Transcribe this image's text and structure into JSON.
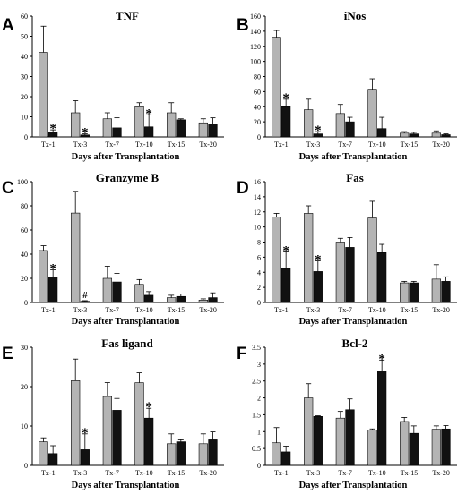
{
  "colors": {
    "series_a": "#b4b4b4",
    "series_b": "#111111",
    "axis": "#000000"
  },
  "chart_data": [
    {
      "panel": "A",
      "type": "bar",
      "title": "TNF",
      "xlabel": "Days after Transplantation",
      "ylabel": "",
      "categories": [
        "Tx-1",
        "Tx-3",
        "Tx-7",
        "Tx-10",
        "Tx-15",
        "Tx-20"
      ],
      "ylim": [
        0,
        60
      ],
      "yticks": [
        "0",
        "10",
        "20",
        "30",
        "40",
        "50",
        "60"
      ],
      "series": [
        {
          "values": [
            42,
            12,
            9,
            15,
            12,
            7
          ],
          "errors": [
            13,
            6,
            3,
            2,
            5,
            2
          ]
        },
        {
          "values": [
            2.5,
            1,
            4.5,
            5,
            8.5,
            6.5
          ],
          "errors": [
            1,
            0.5,
            5,
            6,
            0.5,
            3
          ]
        }
      ],
      "annotations": [
        {
          "category": "Tx-1",
          "text": "*"
        },
        {
          "category": "Tx-3",
          "text": "*"
        },
        {
          "category": "Tx-10",
          "text": "*"
        }
      ]
    },
    {
      "panel": "B",
      "type": "bar",
      "title": "iNos",
      "xlabel": "Days after Transplantation",
      "ylabel": "",
      "categories": [
        "Tx-1",
        "Tx-3",
        "Tx-7",
        "Tx-10",
        "Tx-15",
        "Tx-20"
      ],
      "ylim": [
        0,
        160
      ],
      "yticks": [
        "0",
        "20",
        "40",
        "60",
        "80",
        "100",
        "120",
        "140",
        "160"
      ],
      "series": [
        {
          "values": [
            132,
            36,
            31,
            62,
            5,
            5
          ],
          "errors": [
            9,
            14,
            12,
            15,
            2,
            3
          ]
        },
        {
          "values": [
            40,
            4,
            20,
            11,
            4,
            3
          ],
          "errors": [
            10,
            3,
            6,
            15,
            2,
            1
          ]
        }
      ],
      "annotations": [
        {
          "category": "Tx-1",
          "text": "*"
        },
        {
          "category": "Tx-3",
          "text": "*"
        }
      ]
    },
    {
      "panel": "C",
      "type": "bar",
      "title": "Granzyme B",
      "xlabel": "Days after Transplantation",
      "ylabel": "",
      "categories": [
        "Tx-1",
        "Tx-3",
        "Tx-7",
        "Tx-10",
        "Tx-15",
        "Tx-20"
      ],
      "ylim": [
        0,
        100
      ],
      "yticks": [
        "0",
        "20",
        "40",
        "60",
        "80",
        "100"
      ],
      "series": [
        {
          "values": [
            43,
            74,
            20,
            15,
            4,
            2
          ],
          "errors": [
            4,
            18,
            10,
            4,
            2,
            1
          ]
        },
        {
          "values": [
            21,
            1,
            17,
            6,
            5,
            4
          ],
          "errors": [
            6,
            0.5,
            7,
            3,
            2,
            4
          ]
        }
      ],
      "annotations": [
        {
          "category": "Tx-1",
          "text": "*"
        },
        {
          "category": "Tx-3",
          "text": "#"
        }
      ]
    },
    {
      "panel": "D",
      "type": "bar",
      "title": "Fas",
      "xlabel": "Days after Transplantation",
      "ylabel": "",
      "categories": [
        "Tx-1",
        "Tx-3",
        "Tx-7",
        "Tx-10",
        "Tx-15",
        "Tx-20"
      ],
      "ylim": [
        0,
        16
      ],
      "yticks": [
        "0",
        "2",
        "4",
        "6",
        "8",
        "10",
        "12",
        "14",
        "16"
      ],
      "series": [
        {
          "values": [
            11.3,
            11.8,
            8.0,
            11.2,
            2.6,
            3.1
          ],
          "errors": [
            0.5,
            1.0,
            0.5,
            2.2,
            0.2,
            1.9
          ]
        },
        {
          "values": [
            4.5,
            4.1,
            7.3,
            6.6,
            2.6,
            2.8
          ],
          "errors": [
            2.2,
            1.4,
            1.3,
            1.1,
            0.2,
            0.6
          ]
        }
      ],
      "annotations": [
        {
          "category": "Tx-1",
          "text": "*"
        },
        {
          "category": "Tx-3",
          "text": "*"
        }
      ]
    },
    {
      "panel": "E",
      "type": "bar",
      "title": "Fas ligand",
      "xlabel": "Days after Transplantation",
      "ylabel": "",
      "categories": [
        "Tx-1",
        "Tx-3",
        "Tx-7",
        "Tx-10",
        "Tx-15",
        "Tx-20"
      ],
      "ylim": [
        0,
        30
      ],
      "yticks": [
        "0",
        "10",
        "20",
        "30"
      ],
      "series": [
        {
          "values": [
            6,
            21.5,
            17.5,
            21,
            5.5,
            5.5
          ],
          "errors": [
            1,
            5.5,
            3.5,
            2.5,
            2.5,
            2.5
          ]
        },
        {
          "values": [
            3,
            4,
            14,
            12,
            6,
            6.5
          ],
          "errors": [
            2,
            4,
            3,
            2.5,
            0.5,
            2
          ]
        }
      ],
      "annotations": [
        {
          "category": "Tx-3",
          "text": "*"
        },
        {
          "category": "Tx-10",
          "text": "*"
        }
      ]
    },
    {
      "panel": "F",
      "type": "bar",
      "title": "Bcl-2",
      "xlabel": "Days after Transplantation",
      "ylabel": "",
      "categories": [
        "Tx-1",
        "Tx-3",
        "Tx-7",
        "Tx-10",
        "Tx-15",
        "Tx-20"
      ],
      "ylim": [
        0,
        3.5
      ],
      "yticks": [
        "0",
        "0.5",
        "1",
        "1.5",
        "2",
        "2.5",
        "3",
        "3.5"
      ],
      "series": [
        {
          "values": [
            0.67,
            2.0,
            1.4,
            1.05,
            1.3,
            1.07
          ],
          "errors": [
            0.45,
            0.42,
            0.2,
            0.03,
            0.12,
            0.1
          ]
        },
        {
          "values": [
            0.4,
            1.45,
            1.65,
            2.8,
            0.95,
            1.08
          ],
          "errors": [
            0.17,
            0.02,
            0.32,
            0.32,
            0.22,
            0.1
          ]
        }
      ],
      "annotations": [
        {
          "category": "Tx-10",
          "text": "*"
        }
      ]
    }
  ]
}
